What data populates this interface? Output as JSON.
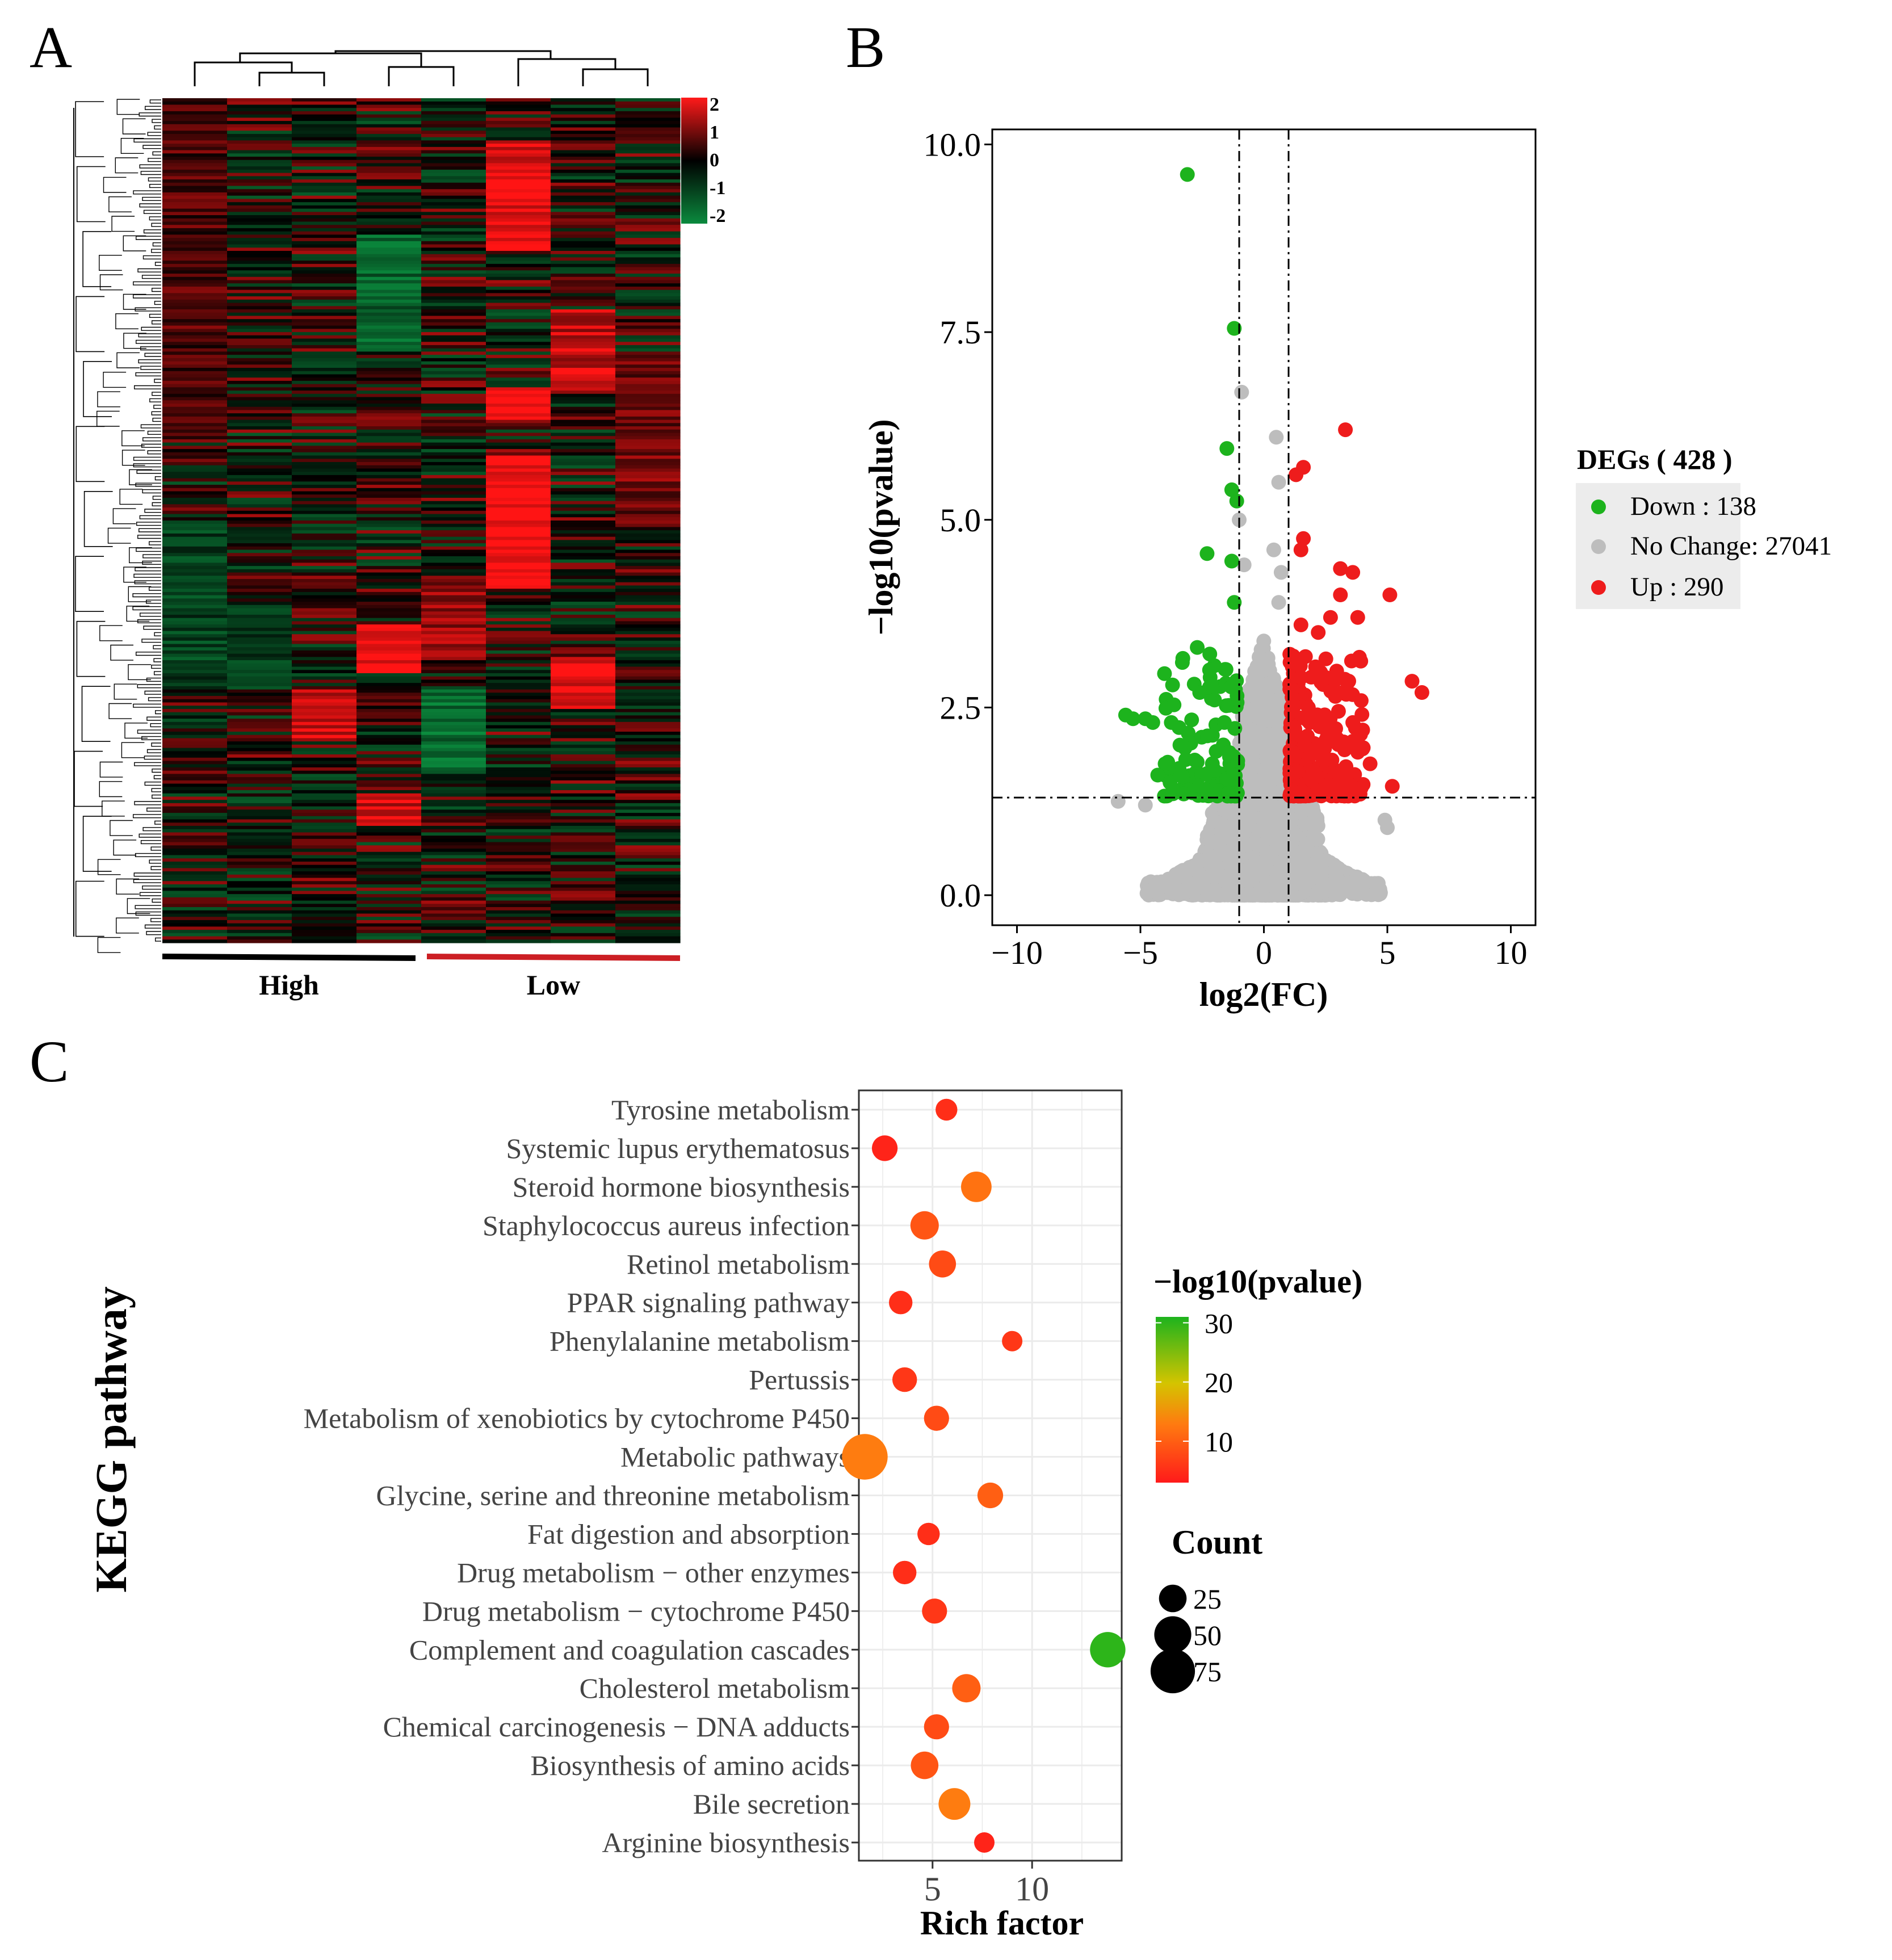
{
  "panels": {
    "a": "A",
    "b": "B",
    "c": "C"
  },
  "colors": {
    "up": "#ee1c1c",
    "down": "#1db31d",
    "nochange": "#bdbdbd",
    "heat_high": "#ff1a1a",
    "heat_low": "#0b8a3e",
    "heat_mid": "#000000"
  },
  "chart_data": [
    {
      "type": "heatmap",
      "panel": "A",
      "columns": 8,
      "groups": [
        {
          "name": "High",
          "columns": 4,
          "color": "#000000"
        },
        {
          "name": "Low",
          "columns": 4,
          "color": "#cc1f24"
        }
      ],
      "colorbar": {
        "ticks": [
          "2",
          "1",
          "0",
          "-1",
          "-2"
        ],
        "range": [
          -2,
          2
        ]
      },
      "dendrogram": {
        "top": true,
        "left": true
      }
    },
    {
      "type": "scatter",
      "panel": "B",
      "xlabel": "log2(FC)",
      "ylabel": "−log10(pvalue)",
      "xlim": [
        -11,
        11
      ],
      "ylim": [
        -0.4,
        10.2
      ],
      "xticks": [
        "−10",
        "−5",
        "0",
        "5",
        "10"
      ],
      "yticks": [
        "0.0",
        "2.5",
        "5.0",
        "7.5",
        "10.0"
      ],
      "xtick_values": [
        -10,
        -5,
        0,
        5,
        10
      ],
      "ytick_values": [
        0,
        2.5,
        5,
        7.5,
        10
      ],
      "thresholds": {
        "fc": [
          -1,
          1
        ],
        "p": 1.3
      },
      "legend": {
        "title": "DEGs ( 428 )",
        "placement": "right",
        "items": [
          {
            "label": "Down : 138",
            "color": "#1db31d"
          },
          {
            "label": "No Change: 27041",
            "color": "#bdbdbd"
          },
          {
            "label": "Up : 290",
            "color": "#ee1c1c"
          }
        ]
      },
      "counts": {
        "down": 138,
        "nochange": 27041,
        "up": 290
      },
      "highlight_points": {
        "down": [
          [
            -3.1,
            9.6
          ],
          [
            -1.2,
            7.55
          ],
          [
            -1.5,
            5.95
          ],
          [
            -1.3,
            5.4
          ],
          [
            -1.1,
            5.25
          ],
          [
            -2.3,
            4.55
          ],
          [
            -1.3,
            4.45
          ],
          [
            -1.2,
            3.9
          ],
          [
            -2.7,
            3.3
          ],
          [
            -2.6,
            2.7
          ],
          [
            -2.2,
            3.0
          ],
          [
            -3.7,
            2.8
          ],
          [
            -3.3,
            3.1
          ],
          [
            -5.6,
            2.4
          ],
          [
            -5.3,
            2.35
          ],
          [
            -4.8,
            2.35
          ],
          [
            -4.5,
            2.3
          ],
          [
            -4.0,
            1.75
          ],
          [
            -4.3,
            1.6
          ],
          [
            -3.8,
            1.5
          ],
          [
            -2.0,
            2.6
          ],
          [
            -1.6,
            2.3
          ],
          [
            -1.4,
            1.9
          ],
          [
            -2.8,
            1.8
          ],
          [
            -3.4,
            2.0
          ]
        ],
        "up": [
          [
            3.3,
            6.2
          ],
          [
            1.6,
            5.7
          ],
          [
            1.3,
            5.6
          ],
          [
            1.6,
            4.75
          ],
          [
            1.5,
            4.6
          ],
          [
            3.1,
            4.35
          ],
          [
            3.6,
            4.3
          ],
          [
            3.1,
            4.0
          ],
          [
            5.1,
            4.0
          ],
          [
            2.7,
            3.7
          ],
          [
            3.8,
            3.7
          ],
          [
            2.2,
            3.5
          ],
          [
            1.5,
            3.6
          ],
          [
            6.0,
            2.85
          ],
          [
            6.4,
            2.7
          ],
          [
            4.0,
            1.95
          ],
          [
            4.3,
            1.75
          ],
          [
            5.2,
            1.45
          ],
          [
            2.5,
            2.9
          ],
          [
            3.2,
            2.7
          ],
          [
            3.6,
            2.3
          ],
          [
            4.0,
            2.2
          ],
          [
            1.5,
            2.9
          ],
          [
            1.8,
            2.5
          ],
          [
            2.7,
            2.1
          ]
        ],
        "nochange": [
          [
            -0.9,
            6.7
          ],
          [
            0.5,
            6.1
          ],
          [
            -1.0,
            5.0
          ],
          [
            0.6,
            5.5
          ],
          [
            0.4,
            4.6
          ],
          [
            0.7,
            4.3
          ],
          [
            -0.8,
            4.4
          ],
          [
            0.6,
            3.9
          ],
          [
            -5.9,
            1.25
          ],
          [
            -4.8,
            1.2
          ],
          [
            4.9,
            1.0
          ],
          [
            5.0,
            0.9
          ]
        ]
      }
    },
    {
      "type": "scatter",
      "panel": "C",
      "xlabel": "Rich factor",
      "ylabel": "KEGG pathway",
      "xlim": [
        1.3,
        14.5
      ],
      "xticks": [
        "5",
        "10"
      ],
      "xtick_values": [
        5,
        10
      ],
      "categories": [
        "Tyrosine metabolism",
        "Systemic lupus erythematosus",
        "Steroid hormone biosynthesis",
        "Staphylococcus aureus infection",
        "Retinol metabolism",
        "PPAR signaling pathway",
        "Phenylalanine metabolism",
        "Pertussis",
        "Metabolism of xenobiotics by cytochrome P450",
        "Metabolic pathways",
        "Glycine, serine and threonine metabolism",
        "Fat digestion and absorption",
        "Drug metabolism − other enzymes",
        "Drug metabolism − cytochrome P450",
        "Complement and coagulation cascades",
        "Cholesterol metabolism",
        "Chemical carcinogenesis − DNA adducts",
        "Biosynthesis of amino acids",
        "Bile secretion",
        "Arginine biosynthesis"
      ],
      "rich_factor": [
        5.7,
        2.6,
        7.2,
        4.6,
        5.5,
        3.4,
        9.0,
        3.6,
        5.2,
        1.6,
        7.9,
        4.8,
        3.6,
        5.1,
        13.8,
        6.7,
        5.2,
        4.6,
        6.1,
        7.6
      ],
      "count": [
        14,
        21,
        32,
        27,
        24,
        17,
        12,
        19,
        20,
        80,
        21,
        15,
        17,
        20,
        45,
        27,
        20,
        25,
        35,
        12
      ],
      "neg_log10_p": [
        5,
        4,
        12,
        9,
        8,
        5,
        6,
        6,
        8,
        13,
        10,
        5,
        5,
        6,
        30,
        10,
        8,
        9,
        13,
        4
      ],
      "color_legend": {
        "title": "−log10(pvalue)",
        "ticks": [
          "30",
          "20",
          "10"
        ],
        "tick_values": [
          30,
          20,
          10
        ],
        "range": [
          3,
          31
        ]
      },
      "size_legend": {
        "title": "Count",
        "labels": [
          "25",
          "50",
          "75"
        ],
        "values": [
          25,
          50,
          75
        ]
      }
    }
  ]
}
